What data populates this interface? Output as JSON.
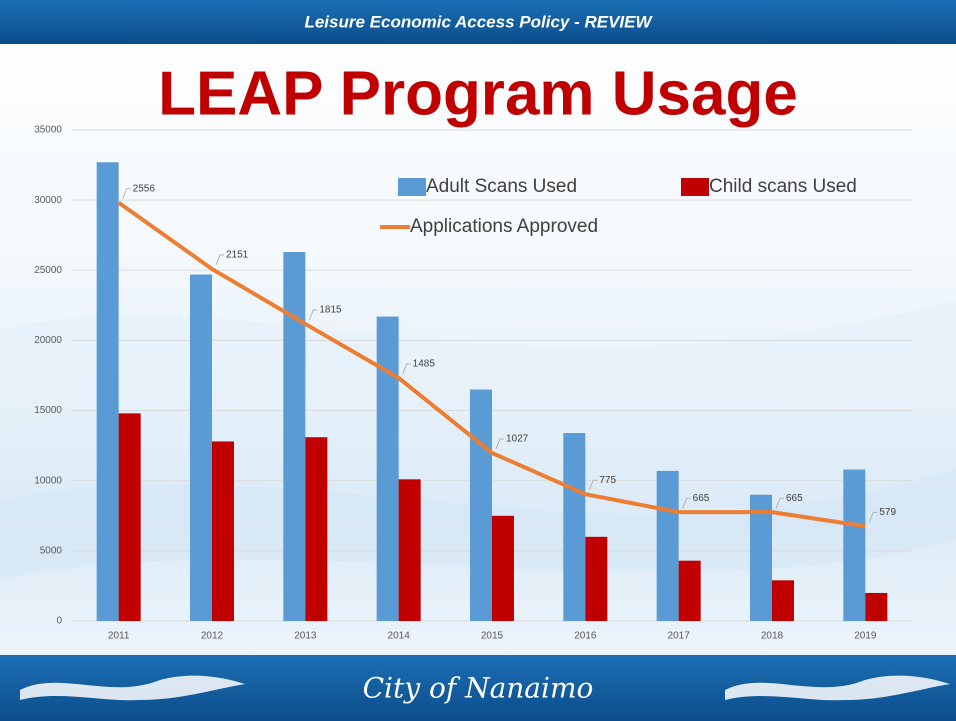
{
  "slide": {
    "header": "Leisure Economic Access Policy - REVIEW",
    "footer": "City of Nanaimo"
  },
  "chart_data": {
    "type": "bar",
    "title": "LEAP Program Usage",
    "categories": [
      "2011",
      "2012",
      "2013",
      "2014",
      "2015",
      "2016",
      "2017",
      "2018",
      "2019"
    ],
    "series": [
      {
        "name": "Adult Scans Used",
        "color": "#5b9bd5",
        "values": [
          32700,
          24700,
          26300,
          21700,
          16500,
          13400,
          10700,
          9000,
          10800
        ]
      },
      {
        "name": "Child scans Used",
        "color": "#c00000",
        "values": [
          14800,
          12800,
          13100,
          10100,
          7500,
          6000,
          4300,
          2900,
          2000
        ]
      },
      {
        "name": "Applications Approved",
        "color": "#ed7d31",
        "type": "line",
        "axis": "y2",
        "values": [
          2556,
          2151,
          1815,
          1485,
          1027,
          775,
          665,
          665,
          579
        ]
      }
    ],
    "ylim": [
      0,
      35000
    ],
    "yticks": [
      0,
      5000,
      10000,
      15000,
      20000,
      25000,
      30000,
      35000
    ],
    "y2lim": [
      0,
      3000
    ],
    "grid": true,
    "legend": "top-right"
  }
}
